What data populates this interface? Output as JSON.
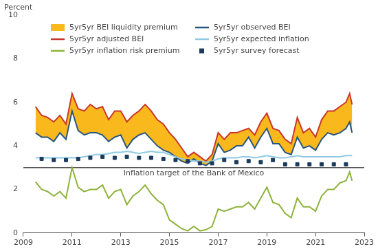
{
  "chart_data": {
    "type": "line",
    "ylabel": "Percent",
    "x": [
      2009.5,
      2009.75,
      2010.0,
      2010.25,
      2010.5,
      2010.75,
      2011.0,
      2011.25,
      2011.5,
      2011.75,
      2012.0,
      2012.25,
      2012.5,
      2012.75,
      2013.0,
      2013.25,
      2013.5,
      2013.75,
      2014.0,
      2014.25,
      2014.5,
      2014.75,
      2015.0,
      2015.25,
      2015.5,
      2015.75,
      2016.0,
      2016.25,
      2016.5,
      2016.75,
      2017.0,
      2017.25,
      2017.5,
      2017.75,
      2018.0,
      2018.25,
      2018.5,
      2018.75,
      2019.0,
      2019.25,
      2019.5,
      2019.75,
      2020.0,
      2020.25,
      2020.5,
      2020.75,
      2021.0,
      2021.25,
      2021.5,
      2021.75,
      2022.0,
      2022.25,
      2022.4,
      2022.5
    ],
    "series": [
      {
        "name": "5yr5yr BEI liquidity premium",
        "type": "area",
        "stacked": true,
        "color": "#f9b91d",
        "values": [
          1.2,
          1.0,
          0.9,
          0.9,
          0.8,
          0.7,
          0.8,
          1.0,
          1.1,
          1.3,
          1.1,
          1.3,
          1.0,
          1.2,
          1.1,
          1.2,
          1.1,
          1.1,
          1.3,
          1.3,
          1.2,
          1.2,
          0.9,
          0.8,
          0.6,
          0.3,
          0.3,
          0.3,
          0.2,
          0.3,
          0.5,
          0.6,
          0.8,
          0.6,
          0.7,
          0.4,
          0.6,
          0.7,
          0.7,
          0.7,
          0.6,
          0.6,
          0.5,
          0.9,
          0.7,
          0.8,
          0.6,
          0.9,
          1.0,
          1.1,
          1.2,
          1.2,
          1.3,
          1.3
        ]
      },
      {
        "name": "5yr5yr observed BEI",
        "type": "line",
        "color": "#27577f",
        "values": [
          4.6,
          4.4,
          4.4,
          4.2,
          4.6,
          4.3,
          5.6,
          4.7,
          4.5,
          4.6,
          4.6,
          4.5,
          4.2,
          4.4,
          4.5,
          3.9,
          4.3,
          4.5,
          4.6,
          4.3,
          4.0,
          3.8,
          3.7,
          3.5,
          3.3,
          3.2,
          3.4,
          3.2,
          3.1,
          3.3,
          4.1,
          3.7,
          3.8,
          4.0,
          4.0,
          4.4,
          3.9,
          4.4,
          4.8,
          4.1,
          4.1,
          3.7,
          3.6,
          4.4,
          3.9,
          4.0,
          3.8,
          4.3,
          4.6,
          4.5,
          4.6,
          4.8,
          5.1,
          4.6
        ]
      },
      {
        "name": "5yr5yr adjusted BEI",
        "type": "line",
        "color": "#c9372c",
        "values": [
          5.8,
          5.4,
          5.3,
          5.1,
          5.4,
          5.0,
          6.4,
          5.7,
          5.6,
          5.9,
          5.7,
          5.8,
          5.2,
          5.6,
          5.6,
          5.1,
          5.4,
          5.6,
          5.9,
          5.6,
          5.2,
          5.0,
          4.6,
          4.3,
          3.9,
          3.5,
          3.7,
          3.5,
          3.3,
          3.6,
          4.6,
          4.3,
          4.6,
          4.6,
          4.7,
          4.8,
          4.5,
          5.1,
          5.5,
          4.8,
          4.7,
          4.3,
          4.1,
          5.3,
          4.6,
          4.8,
          4.4,
          5.2,
          5.6,
          5.6,
          5.8,
          6.0,
          6.4,
          5.9
        ]
      },
      {
        "name": "5yr5yr expected inflation",
        "type": "line",
        "color": "#8ecae3",
        "values": [
          3.45,
          3.45,
          3.45,
          3.45,
          3.45,
          3.45,
          3.45,
          3.45,
          3.5,
          3.55,
          3.6,
          3.6,
          3.65,
          3.7,
          3.7,
          3.75,
          3.7,
          3.65,
          3.7,
          3.75,
          3.7,
          3.7,
          3.6,
          3.5,
          3.4,
          3.35,
          3.3,
          3.3,
          3.25,
          3.3,
          3.4,
          3.45,
          3.45,
          3.45,
          3.5,
          3.5,
          3.45,
          3.5,
          3.55,
          3.5,
          3.45,
          3.45,
          3.5,
          3.55,
          3.5,
          3.5,
          3.5,
          3.5,
          3.5,
          3.5,
          3.5,
          3.55,
          3.55,
          3.55
        ]
      },
      {
        "name": "5yr5yr inflation risk premium",
        "type": "line",
        "color": "#8db33a",
        "values": [
          2.35,
          2.0,
          1.9,
          1.7,
          1.9,
          1.6,
          3.0,
          2.1,
          1.9,
          2.0,
          2.0,
          2.2,
          1.6,
          1.9,
          2.0,
          1.3,
          1.7,
          1.9,
          2.2,
          1.8,
          1.5,
          1.3,
          0.6,
          0.4,
          0.2,
          0.1,
          0.3,
          0.1,
          0.15,
          0.3,
          1.1,
          1.0,
          1.1,
          1.2,
          1.2,
          1.4,
          1.1,
          1.6,
          2.1,
          1.4,
          1.3,
          0.9,
          0.7,
          1.6,
          1.2,
          1.2,
          1.0,
          1.7,
          2.0,
          2.0,
          2.3,
          2.4,
          2.8,
          2.4
        ]
      },
      {
        "name": "5yr5yr survey forecast",
        "type": "scatter",
        "marker": "square",
        "color": "#1b3a5c",
        "x": [
          2009.75,
          2010.25,
          2010.75,
          2011.25,
          2011.75,
          2012.25,
          2012.75,
          2013.25,
          2013.75,
          2014.25,
          2014.75,
          2015.25,
          2015.75,
          2016.25,
          2016.75,
          2017.25,
          2017.75,
          2018.25,
          2018.75,
          2019.25,
          2019.75,
          2020.25,
          2020.75,
          2021.25,
          2021.75,
          2022.25
        ],
        "values": [
          3.4,
          3.35,
          3.35,
          3.4,
          3.45,
          3.5,
          3.45,
          3.5,
          3.45,
          3.45,
          3.4,
          3.35,
          3.3,
          3.2,
          3.2,
          3.35,
          3.25,
          3.3,
          3.25,
          3.35,
          3.15,
          3.15,
          3.15,
          3.15,
          3.15,
          3.15
        ]
      }
    ],
    "annotations": [
      {
        "text": "Inflation target of the Bank of Mexico",
        "y": 3
      }
    ],
    "xlim": [
      2009,
      2023
    ],
    "xticks": [
      2009,
      2011,
      2013,
      2015,
      2017,
      2019,
      2021,
      2023
    ],
    "ylim": [
      0,
      10
    ],
    "yticks": [
      0,
      2,
      4,
      6,
      8,
      10
    ],
    "grid": false,
    "legend": "top"
  }
}
